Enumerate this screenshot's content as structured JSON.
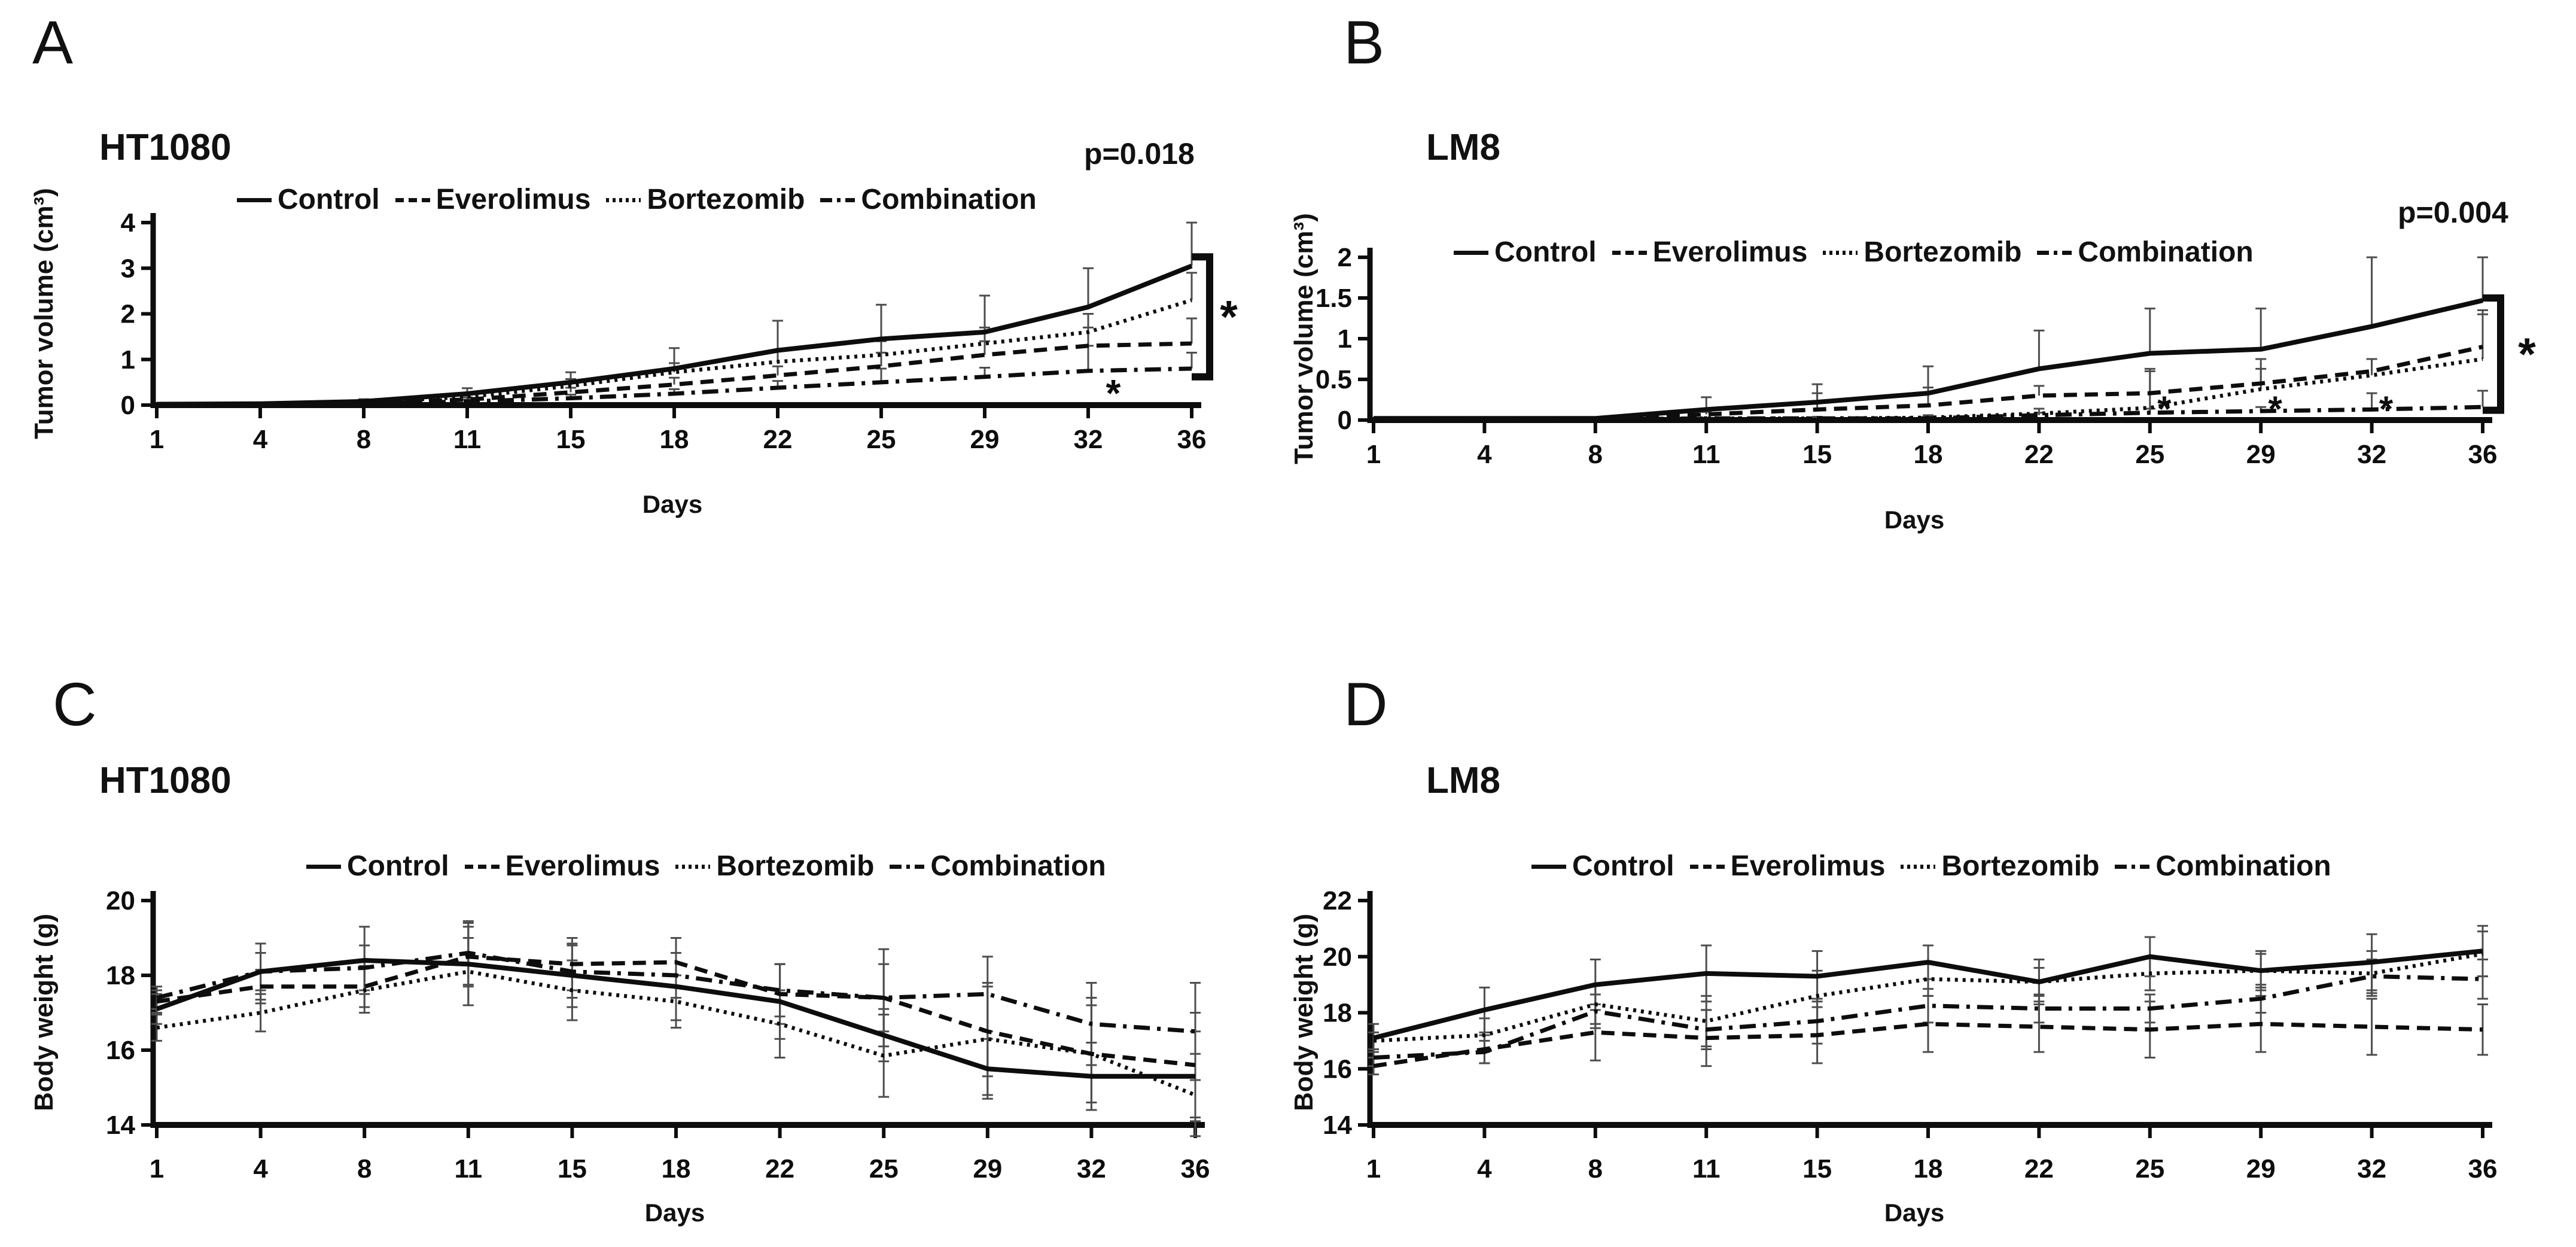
{
  "chart_data": [
    {
      "panel_letter": "A",
      "title": "HT1080",
      "p_value": "p=0.018",
      "type": "line",
      "x_label": "Days",
      "y_label": "Tumor volume (cm³)",
      "x": [
        1,
        4,
        8,
        11,
        15,
        18,
        22,
        25,
        29,
        32,
        36
      ],
      "y_ticks": [
        0,
        1,
        2,
        3,
        4
      ],
      "ylim": [
        0,
        4
      ],
      "legend_position": "top",
      "grid": false,
      "series": [
        {
          "name": "Control",
          "style": "solid",
          "values": [
            0.02,
            0.03,
            0.08,
            0.25,
            0.5,
            0.8,
            1.2,
            1.45,
            1.6,
            2.15,
            3.05
          ],
          "err_up": [
            0,
            0,
            0.05,
            0.12,
            0.22,
            0.45,
            0.65,
            0.75,
            0.8,
            0.85,
            0.95
          ]
        },
        {
          "name": "Everolimus",
          "style": "dashed",
          "values": [
            0.02,
            0.02,
            0.05,
            0.12,
            0.28,
            0.45,
            0.65,
            0.85,
            1.1,
            1.3,
            1.35
          ],
          "err_up": [
            0,
            0,
            0,
            0.05,
            0.1,
            0.15,
            0.2,
            0.3,
            0.3,
            0.4,
            0.55
          ]
        },
        {
          "name": "Bortezomib",
          "style": "dotted",
          "values": [
            0.02,
            0.02,
            0.06,
            0.18,
            0.42,
            0.72,
            0.95,
            1.1,
            1.35,
            1.6,
            2.3
          ],
          "err_up": [
            0,
            0,
            0.03,
            0.08,
            0.15,
            0.2,
            0.25,
            0.3,
            0.35,
            0.4,
            0.6
          ]
        },
        {
          "name": "Combination",
          "style": "dashdot",
          "values": [
            0.01,
            0.02,
            0.03,
            0.08,
            0.15,
            0.25,
            0.38,
            0.5,
            0.62,
            0.75,
            0.8
          ],
          "err_up": [
            0,
            0,
            0,
            0.04,
            0.08,
            0.1,
            0.15,
            0.3,
            0.2,
            0.55,
            0.35
          ]
        }
      ],
      "significance": {
        "bracket": {
          "from": 3.25,
          "to": 0.62,
          "label": "*"
        },
        "axis_marks": [
          {
            "day": 32,
            "label": "*"
          }
        ]
      }
    },
    {
      "panel_letter": "B",
      "title": "LM8",
      "p_value": "p=0.004",
      "type": "line",
      "x_label": "Days",
      "y_label": "Tumor volume (cm³)",
      "x": [
        1,
        4,
        8,
        11,
        15,
        18,
        22,
        25,
        29,
        32,
        36
      ],
      "y_ticks": [
        0,
        0.5,
        1,
        1.5,
        2
      ],
      "ylim": [
        0,
        2
      ],
      "legend_position": "top",
      "grid": false,
      "series": [
        {
          "name": "Control",
          "style": "solid",
          "values": [
            0.02,
            0.02,
            0.02,
            0.13,
            0.22,
            0.33,
            0.63,
            0.82,
            0.87,
            1.15,
            1.47
          ],
          "err_up": [
            0,
            0,
            0,
            0.15,
            0.22,
            0.33,
            0.47,
            0.55,
            0.5,
            0.85,
            0.53
          ]
        },
        {
          "name": "Everolimus",
          "style": "dashed",
          "values": [
            0.01,
            0.01,
            0.02,
            0.07,
            0.13,
            0.18,
            0.3,
            0.33,
            0.45,
            0.6,
            0.9
          ],
          "err_up": [
            0,
            0,
            0,
            0.03,
            0.2,
            0.22,
            0.12,
            0.3,
            0.3,
            0.15,
            0.45
          ]
        },
        {
          "name": "Bortezomib",
          "style": "dotted",
          "values": [
            0.01,
            0.01,
            0.01,
            0.02,
            0.02,
            0.03,
            0.08,
            0.15,
            0.38,
            0.55,
            0.75
          ],
          "err_up": [
            0,
            0,
            0,
            0,
            0.02,
            0.03,
            0.06,
            0.45,
            0.25,
            0.2,
            0.55
          ]
        },
        {
          "name": "Combination",
          "style": "dashdot",
          "values": [
            0.01,
            0.01,
            0.01,
            0.02,
            0.02,
            0.02,
            0.06,
            0.09,
            0.11,
            0.13,
            0.16
          ],
          "err_up": [
            0,
            0,
            0,
            0,
            0,
            0.02,
            0.03,
            0.05,
            0.05,
            0.2,
            0.2
          ]
        }
      ],
      "significance": {
        "bracket": {
          "from": 1.5,
          "to": 0.12,
          "label": "*"
        },
        "axis_marks": [
          {
            "day": 25,
            "label": "*"
          },
          {
            "day": 29,
            "label": "*"
          },
          {
            "day": 32,
            "label": "*"
          }
        ]
      }
    },
    {
      "panel_letter": "C",
      "title": "HT1080",
      "p_value": "",
      "type": "line",
      "x_label": "Days",
      "y_label": "Body weight (g)",
      "x": [
        1,
        4,
        8,
        11,
        15,
        18,
        22,
        25,
        29,
        32,
        36
      ],
      "y_ticks": [
        14,
        16,
        18,
        20
      ],
      "ylim": [
        14,
        20
      ],
      "legend_position": "top",
      "grid": false,
      "series": [
        {
          "name": "Control",
          "style": "solid",
          "values": [
            17.1,
            18.1,
            18.4,
            18.3,
            18.0,
            17.7,
            17.3,
            16.4,
            15.5,
            15.3,
            15.3
          ],
          "err": [
            0.4,
            0.75,
            0.9,
            1.1,
            0.85,
            0.9,
            1.0,
            0.7,
            0.8,
            0.9,
            1.2
          ]
        },
        {
          "name": "Everolimus",
          "style": "dashed",
          "values": [
            17.3,
            17.7,
            17.7,
            18.5,
            18.3,
            18.35,
            17.5,
            17.4,
            16.5,
            15.9,
            15.6
          ],
          "err": [
            0.3,
            0.45,
            0.55,
            0.8,
            0.7,
            0.65,
            0.8,
            1.3,
            1.2,
            1.5,
            1.4
          ]
        },
        {
          "name": "Bortezomib",
          "style": "dotted",
          "values": [
            16.6,
            17.0,
            17.6,
            18.1,
            17.6,
            17.3,
            16.7,
            15.85,
            16.3,
            15.9,
            14.8
          ],
          "err": [
            0.35,
            0.5,
            0.6,
            0.9,
            0.8,
            0.7,
            0.9,
            1.1,
            1.5,
            1.3,
            1.1
          ]
        },
        {
          "name": "Combination",
          "style": "dashdot",
          "values": [
            17.4,
            18.1,
            18.2,
            18.6,
            18.1,
            18.0,
            17.6,
            17.4,
            17.5,
            16.7,
            16.5
          ],
          "err": [
            0.3,
            0.5,
            0.6,
            0.85,
            0.7,
            0.6,
            0.7,
            0.9,
            1.0,
            1.1,
            1.3
          ]
        }
      ],
      "significance": null
    },
    {
      "panel_letter": "D",
      "title": "LM8",
      "p_value": "",
      "type": "line",
      "x_label": "Days",
      "y_label": "Body weight (g)",
      "x": [
        1,
        4,
        8,
        11,
        15,
        18,
        22,
        25,
        29,
        32,
        36
      ],
      "y_ticks": [
        14,
        16,
        18,
        20,
        22
      ],
      "ylim": [
        14,
        22
      ],
      "legend_position": "top",
      "grid": false,
      "series": [
        {
          "name": "Control",
          "style": "solid",
          "values": [
            17.1,
            18.1,
            19.0,
            19.4,
            19.3,
            19.8,
            19.1,
            20.0,
            19.5,
            19.8,
            20.2
          ],
          "err": [
            0.5,
            0.8,
            0.9,
            1.0,
            0.9,
            0.6,
            0.8,
            0.7,
            0.7,
            1.0,
            0.9
          ]
        },
        {
          "name": "Everolimus",
          "style": "dashed",
          "values": [
            16.1,
            16.7,
            17.3,
            17.1,
            17.2,
            17.6,
            17.5,
            17.4,
            17.6,
            17.5,
            17.4
          ],
          "err": [
            0.3,
            0.5,
            1.0,
            1.0,
            1.0,
            1.0,
            0.9,
            1.0,
            1.0,
            1.0,
            0.9
          ]
        },
        {
          "name": "Bortezomib",
          "style": "dotted",
          "values": [
            17.0,
            17.2,
            18.3,
            17.7,
            18.6,
            19.2,
            19.1,
            19.4,
            19.5,
            19.4,
            20.1
          ],
          "err": [
            0.3,
            0.6,
            0.7,
            0.9,
            0.9,
            0.6,
            0.5,
            0.6,
            0.6,
            0.8,
            0.8
          ]
        },
        {
          "name": "Combination",
          "style": "dashdot",
          "values": [
            16.4,
            16.6,
            18.05,
            17.4,
            17.7,
            18.25,
            18.15,
            18.15,
            18.5,
            19.3,
            19.2
          ],
          "err": [
            0.3,
            0.4,
            0.6,
            0.7,
            0.8,
            0.6,
            0.5,
            0.5,
            0.5,
            0.6,
            0.7
          ]
        }
      ],
      "significance": null
    }
  ]
}
